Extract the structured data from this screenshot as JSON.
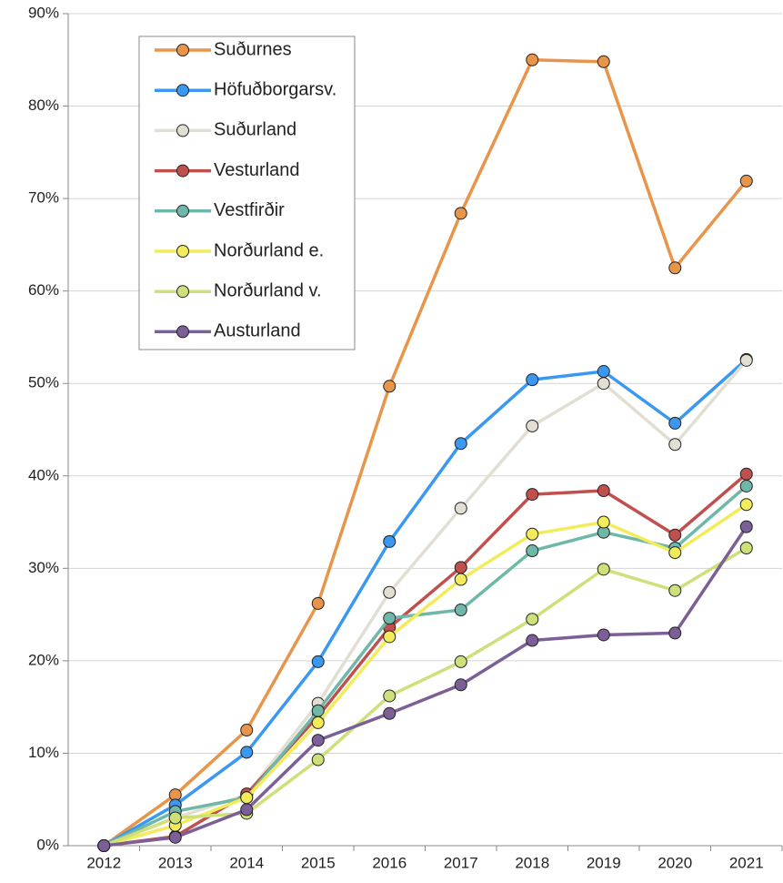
{
  "chart_data": {
    "type": "line",
    "categories": [
      "2012",
      "2013",
      "2014",
      "2015",
      "2016",
      "2017",
      "2018",
      "2019",
      "2020",
      "2021"
    ],
    "ylim": [
      0,
      90
    ],
    "yticks": [
      {
        "value": 0,
        "label": "0%"
      },
      {
        "value": 10,
        "label": "10%"
      },
      {
        "value": 20,
        "label": "20%"
      },
      {
        "value": 30,
        "label": "30%"
      },
      {
        "value": 40,
        "label": "40%"
      },
      {
        "value": 50,
        "label": "50%"
      },
      {
        "value": 60,
        "label": "60%"
      },
      {
        "value": 70,
        "label": "70%"
      },
      {
        "value": 80,
        "label": "80%"
      },
      {
        "value": 90,
        "label": "90%"
      }
    ],
    "grid": true,
    "legend": "upper left",
    "series": [
      {
        "name": "Suðurnes",
        "color": "#e8954a",
        "values": [
          0,
          5.5,
          12.5,
          26.2,
          49.7,
          68.4,
          85.0,
          84.8,
          62.5,
          71.9
        ]
      },
      {
        "name": "Höfuðborgarsv.",
        "color": "#3a98f0",
        "values": [
          0,
          4.4,
          10.1,
          19.9,
          32.9,
          43.5,
          50.4,
          51.3,
          45.7,
          52.6
        ]
      },
      {
        "name": "Suðurland",
        "color": "#e3ded2",
        "values": [
          0,
          3.0,
          5.5,
          15.4,
          27.4,
          36.5,
          45.4,
          50.0,
          43.4,
          52.5
        ]
      },
      {
        "name": "Vesturland",
        "color": "#c0504d",
        "values": [
          0,
          1.0,
          5.6,
          14.0,
          23.6,
          30.1,
          38.0,
          38.4,
          33.6,
          40.2
        ]
      },
      {
        "name": "Vestfirðir",
        "color": "#6fb8a9",
        "values": [
          0,
          3.7,
          5.2,
          14.6,
          24.6,
          25.5,
          31.9,
          33.9,
          32.2,
          38.9
        ]
      },
      {
        "name": "Norðurland e.",
        "color": "#f2ec5a",
        "values": [
          0,
          2.2,
          5.2,
          13.3,
          22.6,
          28.8,
          33.7,
          35.0,
          31.7,
          36.9
        ]
      },
      {
        "name": "Norðurland v.",
        "color": "#cde07a",
        "values": [
          0,
          3.0,
          3.5,
          9.3,
          16.2,
          19.9,
          24.5,
          29.9,
          27.6,
          32.2
        ]
      },
      {
        "name": "Austurland",
        "color": "#7b5f96",
        "values": [
          0,
          0.9,
          3.9,
          11.4,
          14.3,
          17.4,
          22.2,
          22.8,
          23.0,
          34.5
        ]
      }
    ]
  }
}
